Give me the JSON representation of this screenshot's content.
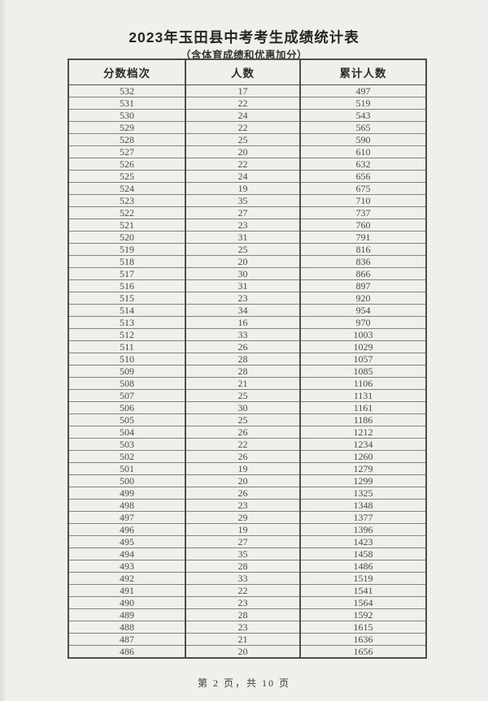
{
  "page": {
    "title": "2023年玉田县中考考生成绩统计表",
    "subtitle": "（含体育成绩和优惠加分）",
    "footer": "第 2 页，共 10 页"
  },
  "colors": {
    "page_bg": "#f1efec",
    "ink": "#2f2f2f",
    "number_ink": "#4a4a4a",
    "border_dark": "#4c4c4c",
    "border_light": "#828282"
  },
  "table": {
    "headers": [
      "分数档次",
      "人数",
      "累计人数"
    ],
    "rows": [
      [
        532,
        17,
        497
      ],
      [
        531,
        22,
        519
      ],
      [
        530,
        24,
        543
      ],
      [
        529,
        22,
        565
      ],
      [
        528,
        25,
        590
      ],
      [
        527,
        20,
        610
      ],
      [
        526,
        22,
        632
      ],
      [
        525,
        24,
        656
      ],
      [
        524,
        19,
        675
      ],
      [
        523,
        35,
        710
      ],
      [
        522,
        27,
        737
      ],
      [
        521,
        23,
        760
      ],
      [
        520,
        31,
        791
      ],
      [
        519,
        25,
        816
      ],
      [
        518,
        20,
        836
      ],
      [
        517,
        30,
        866
      ],
      [
        516,
        31,
        897
      ],
      [
        515,
        23,
        920
      ],
      [
        514,
        34,
        954
      ],
      [
        513,
        16,
        970
      ],
      [
        512,
        33,
        1003
      ],
      [
        511,
        26,
        1029
      ],
      [
        510,
        28,
        1057
      ],
      [
        509,
        28,
        1085
      ],
      [
        508,
        21,
        1106
      ],
      [
        507,
        25,
        1131
      ],
      [
        506,
        30,
        1161
      ],
      [
        505,
        25,
        1186
      ],
      [
        504,
        26,
        1212
      ],
      [
        503,
        22,
        1234
      ],
      [
        502,
        26,
        1260
      ],
      [
        501,
        19,
        1279
      ],
      [
        500,
        20,
        1299
      ],
      [
        499,
        26,
        1325
      ],
      [
        498,
        23,
        1348
      ],
      [
        497,
        29,
        1377
      ],
      [
        496,
        19,
        1396
      ],
      [
        495,
        27,
        1423
      ],
      [
        494,
        35,
        1458
      ],
      [
        493,
        28,
        1486
      ],
      [
        492,
        33,
        1519
      ],
      [
        491,
        22,
        1541
      ],
      [
        490,
        23,
        1564
      ],
      [
        489,
        28,
        1592
      ],
      [
        488,
        23,
        1615
      ],
      [
        487,
        21,
        1636
      ],
      [
        486,
        20,
        1656
      ]
    ]
  }
}
